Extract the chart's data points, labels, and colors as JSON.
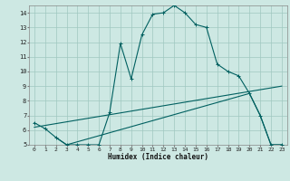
{
  "xlabel": "Humidex (Indice chaleur)",
  "bg_color": "#cde8e3",
  "grid_color": "#a0c8c0",
  "line_color": "#006060",
  "xlim": [
    -0.5,
    23.5
  ],
  "ylim": [
    5,
    14.5
  ],
  "xticks": [
    0,
    1,
    2,
    3,
    4,
    5,
    6,
    7,
    8,
    9,
    10,
    11,
    12,
    13,
    14,
    15,
    16,
    17,
    18,
    19,
    20,
    21,
    22,
    23
  ],
  "yticks": [
    5,
    6,
    7,
    8,
    9,
    10,
    11,
    12,
    13,
    14
  ],
  "line1_x": [
    0,
    1,
    2,
    3,
    4,
    5,
    6,
    7,
    8,
    9,
    10,
    11,
    12,
    13,
    14,
    15,
    16,
    17,
    18,
    19,
    20,
    21,
    22,
    23
  ],
  "line1_y": [
    6.5,
    6.1,
    5.5,
    5.0,
    5.0,
    5.0,
    5.0,
    7.2,
    11.9,
    9.5,
    12.5,
    13.9,
    14.0,
    14.5,
    14.0,
    13.2,
    13.0,
    10.5,
    10.0,
    9.7,
    8.5,
    7.0,
    5.0,
    5.0
  ],
  "line2_x": [
    2,
    3,
    20,
    21,
    22,
    23
  ],
  "line2_y": [
    5.5,
    5.0,
    8.5,
    7.0,
    5.0,
    5.0
  ],
  "line3_x": [
    0,
    23
  ],
  "line3_y": [
    6.2,
    9.0
  ]
}
